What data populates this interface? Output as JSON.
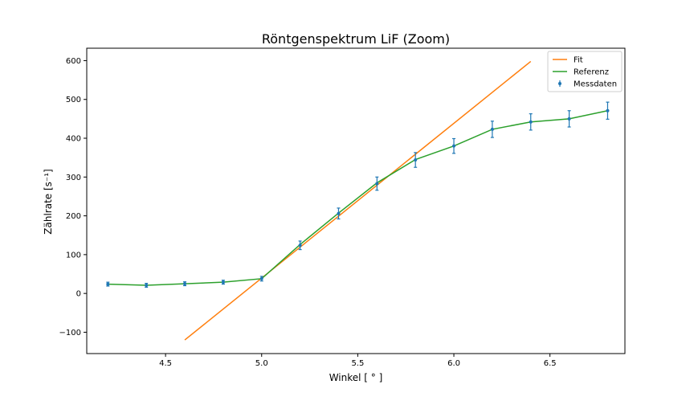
{
  "chart_data": {
    "type": "line",
    "title": "Röntgenspektrum LiF (Zoom)",
    "xlabel": "Winkel [$^\\circ$]",
    "xlabel_display": "Winkel [ ° ]",
    "ylabel_display": "Zählrate [s⁻¹]",
    "xlim": [
      4.09,
      6.89
    ],
    "ylim": [
      -155,
      632
    ],
    "xticks": [
      4.5,
      5.0,
      5.5,
      6.0,
      6.5
    ],
    "xtick_labels": [
      "4.5",
      "5.0",
      "5.5",
      "6.0",
      "6.5"
    ],
    "yticks": [
      -100,
      0,
      100,
      200,
      300,
      400,
      500,
      600
    ],
    "ytick_labels": [
      "−100",
      "0",
      "100",
      "200",
      "300",
      "400",
      "500",
      "600"
    ],
    "grid": false,
    "legend_position": "top-right",
    "series": [
      {
        "name": "Fit",
        "kind": "line",
        "color": "#ff7f0e",
        "x": [
          4.6,
          6.4
        ],
        "y": [
          -120,
          598
        ]
      },
      {
        "name": "Referenz",
        "kind": "line",
        "color": "#2ca02c",
        "x": [
          4.2,
          4.4,
          4.6,
          4.8,
          5.0,
          5.2,
          5.4,
          5.6,
          5.8,
          6.0,
          6.2,
          6.4,
          6.6,
          6.8
        ],
        "y": [
          24,
          21,
          25,
          29,
          38,
          126,
          207,
          285,
          345,
          380,
          423,
          442,
          450,
          471
        ]
      },
      {
        "name": "Messdaten",
        "kind": "errorbar",
        "color": "#1f77b4",
        "x": [
          4.2,
          4.4,
          4.6,
          4.8,
          5.0,
          5.2,
          5.4,
          5.6,
          5.8,
          6.0,
          6.2,
          6.4,
          6.6,
          6.8
        ],
        "y": [
          24,
          21,
          25,
          29,
          38,
          124,
          206,
          283,
          344,
          380,
          423,
          442,
          450,
          471
        ],
        "yerr": [
          5,
          5,
          5,
          5,
          6,
          11,
          14,
          17,
          19,
          19,
          21,
          21,
          21,
          22
        ]
      }
    ]
  }
}
